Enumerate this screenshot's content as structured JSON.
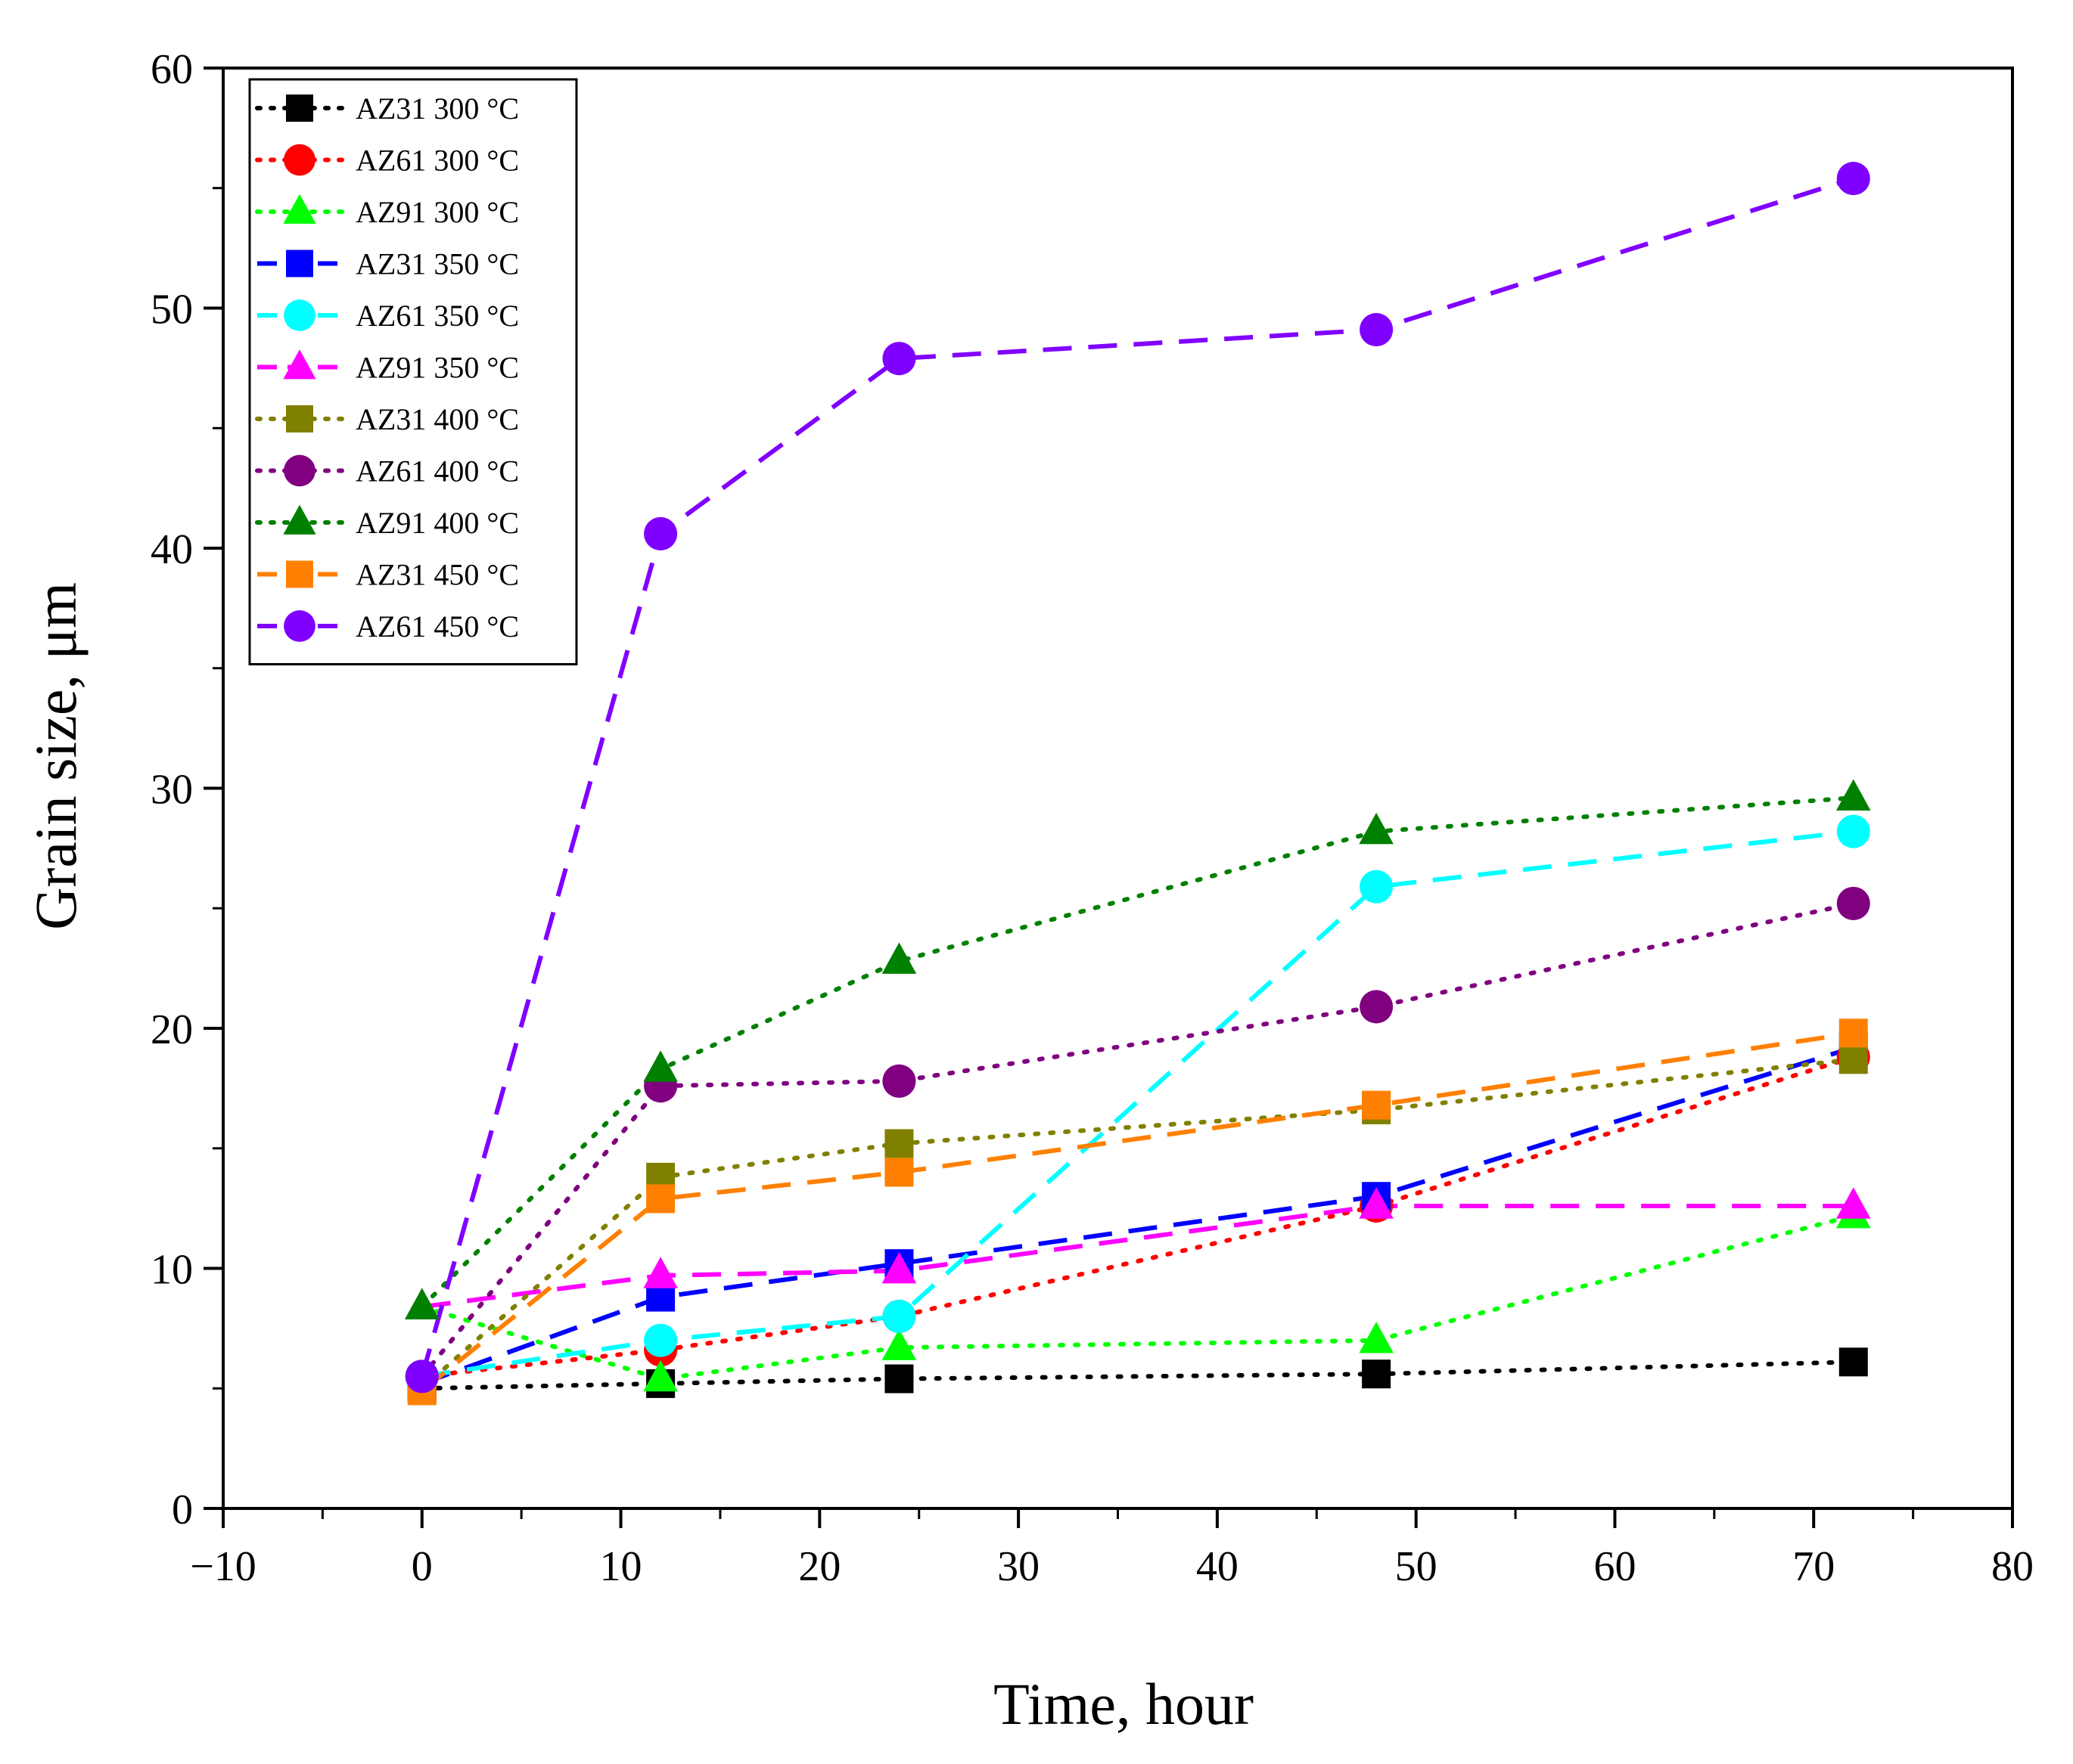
{
  "chart_data": {
    "type": "line",
    "title": "",
    "xlabel": "Time, hour",
    "ylabel": "Grain size, μm",
    "xlim": [
      -10,
      80
    ],
    "ylim": [
      0,
      60
    ],
    "xticks": [
      -10,
      0,
      10,
      20,
      30,
      40,
      50,
      60,
      70,
      80
    ],
    "yticks": [
      0,
      10,
      20,
      30,
      40,
      50,
      60
    ],
    "xtick_labels": [
      "−10",
      "0",
      "10",
      "20",
      "30",
      "40",
      "50",
      "60",
      "70",
      "80"
    ],
    "ytick_labels": [
      "0",
      "10",
      "20",
      "30",
      "40",
      "50",
      "60"
    ],
    "grid": false,
    "legend": {
      "position": "top-left"
    },
    "series": [
      {
        "name": "AZ31 300 °C",
        "color": "#000000",
        "marker": "square",
        "line": "dot",
        "x": [
          0,
          12,
          24,
          48,
          72
        ],
        "y": [
          5.0,
          5.2,
          5.4,
          5.6,
          6.1
        ]
      },
      {
        "name": "AZ61 300 °C",
        "color": "#ff0000",
        "marker": "circle",
        "line": "dot",
        "x": [
          0,
          12,
          24,
          48,
          72
        ],
        "y": [
          5.5,
          6.6,
          8.0,
          12.6,
          18.8
        ]
      },
      {
        "name": "AZ91 300 °C",
        "color": "#00ff00",
        "marker": "triangle",
        "line": "dot",
        "x": [
          0,
          12,
          24,
          48,
          72
        ],
        "y": [
          8.4,
          5.4,
          6.7,
          7.0,
          12.2
        ]
      },
      {
        "name": "AZ31 350 °C",
        "color": "#0000ff",
        "marker": "square",
        "line": "dash",
        "x": [
          0,
          12,
          24,
          48,
          72
        ],
        "y": [
          5.2,
          8.8,
          10.2,
          13.0,
          19.2
        ]
      },
      {
        "name": "AZ61 350 °C",
        "color": "#00ffff",
        "marker": "circle",
        "line": "dash",
        "x": [
          0,
          12,
          24,
          48,
          72
        ],
        "y": [
          5.5,
          7.0,
          8.0,
          25.9,
          28.2
        ]
      },
      {
        "name": "AZ91 350 °C",
        "color": "#ff00ff",
        "marker": "triangle",
        "line": "dash",
        "x": [
          0,
          12,
          24,
          48,
          72
        ],
        "y": [
          8.4,
          9.7,
          9.9,
          12.6,
          12.6
        ]
      },
      {
        "name": "AZ31 400 °C",
        "color": "#808000",
        "marker": "square",
        "line": "dot",
        "x": [
          0,
          12,
          24,
          48,
          72
        ],
        "y": [
          5.0,
          13.8,
          15.2,
          16.6,
          18.7
        ]
      },
      {
        "name": "AZ61 400 °C",
        "color": "#800080",
        "marker": "circle",
        "line": "dot",
        "x": [
          0,
          12,
          24,
          48,
          72
        ],
        "y": [
          5.5,
          17.6,
          17.8,
          20.9,
          25.2
        ]
      },
      {
        "name": "AZ91 400 °C",
        "color": "#008000",
        "marker": "triangle",
        "line": "dot",
        "x": [
          0,
          12,
          24,
          48,
          72
        ],
        "y": [
          8.4,
          18.3,
          22.8,
          28.2,
          29.6
        ]
      },
      {
        "name": "AZ31 450 °C",
        "color": "#ff8000",
        "marker": "square",
        "line": "dash",
        "x": [
          0,
          12,
          24,
          48,
          72
        ],
        "y": [
          4.9,
          12.9,
          14.0,
          16.8,
          19.8
        ]
      },
      {
        "name": "AZ61 450 °C",
        "color": "#8000ff",
        "marker": "circle",
        "line": "dash",
        "x": [
          0,
          12,
          24,
          48,
          72
        ],
        "y": [
          5.5,
          40.6,
          47.9,
          49.1,
          55.4
        ]
      }
    ]
  }
}
